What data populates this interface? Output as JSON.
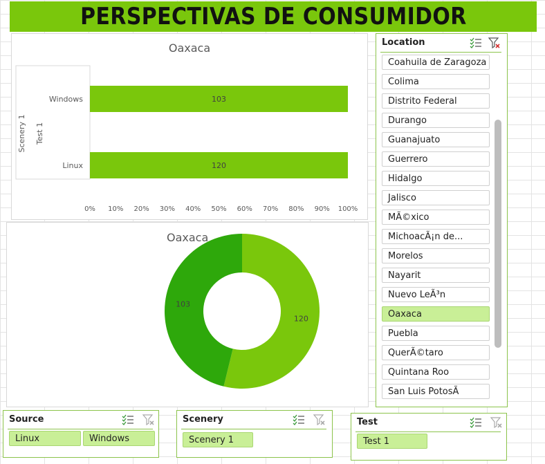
{
  "banner": {
    "title": "PERSPECTIVAS DE CONSUMIDOR"
  },
  "bar_chart": {
    "title": "Oaxaca",
    "axis_title_outer": "Scenery 1",
    "axis_title_inner": "Test 1"
  },
  "donut_chart": {
    "title": "Oaxaca"
  },
  "chart_data": [
    {
      "type": "bar",
      "orientation": "horizontal",
      "stacking": "percent",
      "title": "Oaxaca",
      "categories": [
        "Windows",
        "Linux"
      ],
      "values": [
        103,
        120
      ],
      "data_labels": [
        "103",
        "120"
      ],
      "xlim": [
        0,
        100
      ],
      "x_ticks": [
        "0%",
        "10%",
        "20%",
        "30%",
        "40%",
        "50%",
        "60%",
        "70%",
        "80%",
        "90%",
        "100%"
      ],
      "color": "#7ac70c",
      "grid": false
    },
    {
      "type": "pie",
      "variant": "donut",
      "title": "Oaxaca",
      "slices": [
        {
          "label": "120",
          "value": 120,
          "color": "#7ac70c"
        },
        {
          "label": "103",
          "value": 103,
          "color": "#2ea80b"
        }
      ]
    }
  ],
  "location_slicer": {
    "title": "Location",
    "items": [
      {
        "label": "Coahuila de Zaragoza",
        "selected": false
      },
      {
        "label": "Colima",
        "selected": false
      },
      {
        "label": "Distrito Federal",
        "selected": false
      },
      {
        "label": "Durango",
        "selected": false
      },
      {
        "label": "Guanajuato",
        "selected": false
      },
      {
        "label": "Guerrero",
        "selected": false
      },
      {
        "label": "Hidalgo",
        "selected": false
      },
      {
        "label": "Jalisco",
        "selected": false
      },
      {
        "label": "MÃ©xico",
        "selected": false
      },
      {
        "label": "MichoacÃ¡n de...",
        "selected": false
      },
      {
        "label": "Morelos",
        "selected": false
      },
      {
        "label": "Nayarit",
        "selected": false
      },
      {
        "label": "Nuevo LeÃ³n",
        "selected": false
      },
      {
        "label": "Oaxaca",
        "selected": true
      },
      {
        "label": "Puebla",
        "selected": false
      },
      {
        "label": "QuerÃ©taro",
        "selected": false
      },
      {
        "label": "Quintana Roo",
        "selected": false
      },
      {
        "label": "San Luis PotosÃ",
        "selected": false
      }
    ]
  },
  "source_slicer": {
    "title": "Source",
    "items": [
      {
        "label": "Linux",
        "selected": true
      },
      {
        "label": "Windows",
        "selected": true
      }
    ]
  },
  "scenery_slicer": {
    "title": "Scenery",
    "items": [
      {
        "label": "Scenery 1",
        "selected": true
      }
    ]
  },
  "test_slicer": {
    "title": "Test",
    "items": [
      {
        "label": "Test 1",
        "selected": true
      }
    ]
  },
  "colors": {
    "accent": "#7ac70c",
    "accent_dark": "#2ea80b",
    "selected_item": "#c9ef97",
    "slicer_border": "#8bc34a"
  },
  "icons": {
    "multi_select": "multi-select-icon",
    "clear_filter": "clear-filter-icon"
  }
}
